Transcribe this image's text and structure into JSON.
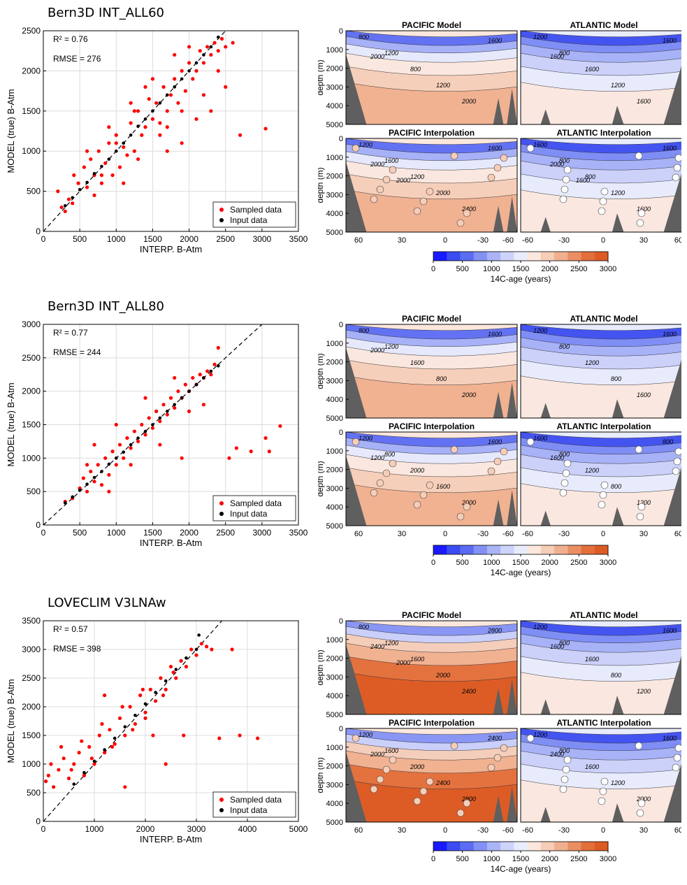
{
  "rows": [
    {
      "title": "Bern3D INT_ALL60",
      "r2": "R² = 0.76",
      "rmse": "RMSE = 276",
      "scatter": {
        "xlabel": "INTERP. B-Atm",
        "ylabel": "MODEL (true) B-Atm",
        "xlim": [
          0,
          3500
        ],
        "ylim": [
          0,
          2500
        ],
        "xticks": [
          0,
          500,
          1000,
          1500,
          2000,
          2500,
          3000,
          3500
        ],
        "yticks": [
          0,
          500,
          1000,
          1500,
          2000,
          2500
        ],
        "legend": [
          "Sampled data",
          "Input data"
        ]
      },
      "sections": {
        "model_pacific": "PACIFIC  Model",
        "model_atlantic": "ATLANTIC Model",
        "interp_pacific": "PACIFIC  Interpolation",
        "interp_atlantic": "ATLANTIC Interpolation",
        "depth_label": "depth (m)",
        "depth_ticks": [
          "0",
          "1000",
          "2000",
          "3000",
          "4000",
          "5000"
        ],
        "lat_ticks": [
          "60",
          "30",
          "0",
          "-30",
          "-60",
          "-60",
          "-30",
          "0",
          "30",
          "60"
        ],
        "contours_pac_model": [
          "800",
          "1200",
          "800",
          "1200",
          "2000",
          "1600",
          "2000"
        ],
        "contours_atl_model": [
          "1200",
          "800",
          "1600",
          "1200",
          "1600",
          "1600",
          "1600"
        ],
        "contours_pac_interp": [
          "1200",
          "1600",
          "1200",
          "2000",
          "2400",
          "1600",
          "2000",
          "2000"
        ],
        "contours_atl_interp": [
          "1600",
          "800",
          "800",
          "1200",
          "1600",
          "1600",
          "2000",
          "1600"
        ]
      },
      "colorbar": {
        "ticks": [
          "0",
          "500",
          "1000",
          "1500",
          "2000",
          "2500",
          "3000"
        ],
        "label": "14C-age (years)"
      }
    },
    {
      "title": "Bern3D INT_ALL80",
      "r2": "R² = 0.77",
      "rmse": "RMSE = 244",
      "scatter": {
        "xlabel": "INTERP. B-Atm",
        "ylabel": "MODEL (true) B-Atm",
        "xlim": [
          0,
          3500
        ],
        "ylim": [
          0,
          3000
        ],
        "xticks": [
          0,
          500,
          1000,
          1500,
          2000,
          2500,
          3000,
          3500
        ],
        "yticks": [
          0,
          500,
          1000,
          1500,
          2000,
          2500,
          3000
        ],
        "legend": [
          "Sampled data",
          "Input data"
        ]
      },
      "sections": {
        "model_pacific": "PACIFIC  Model",
        "model_atlantic": "ATLANTIC Model",
        "interp_pacific": "PACIFIC  Interpolation",
        "interp_atlantic": "ATLANTIC Interpolation",
        "depth_label": "depth (m)",
        "depth_ticks": [
          "0",
          "1000",
          "2000",
          "3000",
          "4000",
          "5000"
        ],
        "lat_ticks": [
          "60",
          "30",
          "0",
          "-30",
          "-60",
          "-60",
          "-30",
          "0",
          "30",
          "60"
        ],
        "contours_pac_model": [
          "800",
          "1200",
          "1600",
          "800",
          "2000",
          "1600",
          "2000"
        ],
        "contours_atl_model": [
          "1200",
          "800",
          "1200",
          "800",
          "1600",
          "1600"
        ],
        "contours_pac_interp": [
          "1200",
          "800",
          "2000",
          "1600",
          "2000",
          "1600",
          "1200"
        ],
        "contours_atl_interp": [
          "1600",
          "800",
          "1200",
          "800",
          "1200",
          "800",
          "1600"
        ]
      },
      "colorbar": {
        "ticks": [
          "0",
          "500",
          "1000",
          "1500",
          "2000",
          "2500",
          "3000"
        ],
        "label": "14C-age (years)"
      }
    },
    {
      "title": "LOVECLIM V3LNAw",
      "r2": "R² = 0.57",
      "rmse": "RMSE = 398",
      "scatter": {
        "xlabel": "INTERP. B-Atm",
        "ylabel": "MODEL (true) B-Atm",
        "xlim": [
          0,
          5000
        ],
        "ylim": [
          0,
          3500
        ],
        "xticks": [
          0,
          1000,
          2000,
          3000,
          4000,
          5000
        ],
        "yticks": [
          0,
          500,
          1000,
          1500,
          2000,
          2500,
          3000,
          3500
        ],
        "legend": [
          "Sampled data",
          "Input data"
        ]
      },
      "sections": {
        "model_pacific": "PACIFIC  Model",
        "model_atlantic": "ATLANTIC Model",
        "interp_pacific": "PACIFIC  Interpolation",
        "interp_atlantic": "ATLANTIC Interpolation",
        "depth_label": "depth (m)",
        "depth_ticks": [
          "0",
          "1000",
          "2000",
          "3000",
          "4000",
          "5000"
        ],
        "lat_ticks": [
          "60",
          "30",
          "0",
          "-30",
          "-60",
          "-60",
          "-30",
          "0",
          "30",
          "60"
        ],
        "contours_pac_model": [
          "800",
          "1200",
          "1600",
          "2000",
          "2400",
          "2800",
          "2400",
          "2000"
        ],
        "contours_atl_model": [
          "1200",
          "800",
          "1600",
          "800",
          "1200",
          "1600",
          "1600"
        ],
        "contours_pac_interp": [
          "1200",
          "1600",
          "2000",
          "2400",
          "2800",
          "2400",
          "2000"
        ],
        "contours_atl_interp": [
          "1200",
          "800",
          "1600",
          "1200",
          "2000",
          "1600",
          "2400"
        ]
      },
      "colorbar": {
        "ticks": [
          "0",
          "500",
          "1000",
          "1500",
          "2000",
          "2500",
          "3000"
        ],
        "label": "14C-age (years)"
      }
    }
  ],
  "chart_data": [
    {
      "type": "scatter",
      "title": "Bern3D INT_ALL60",
      "xlabel": "INTERP. B-Atm",
      "ylabel": "MODEL (true) B-Atm",
      "xlim": [
        0,
        3500
      ],
      "ylim": [
        0,
        2500
      ],
      "grid": true,
      "legend": "bottom-right",
      "annotations": [
        "R² = 0.76",
        "RMSE = 276"
      ],
      "series": [
        {
          "name": "Sampled data",
          "color": "#ff0000",
          "x": [
            250,
            350,
            420,
            480,
            560,
            600,
            650,
            700,
            760,
            800,
            850,
            900,
            950,
            1000,
            1050,
            1100,
            1150,
            1200,
            1250,
            1300,
            1350,
            1400,
            1450,
            1500,
            1550,
            1600,
            1650,
            1700,
            1750,
            1800,
            1850,
            1900,
            1950,
            2000,
            2050,
            2100,
            2150,
            2200,
            2250,
            2300,
            2350,
            2400,
            2450,
            2500,
            2600,
            2700,
            3050,
            600,
            700,
            1200,
            1300,
            1500,
            1700,
            1900,
            2100,
            2300,
            200,
            300,
            400,
            800,
            1000,
            1100,
            1400,
            1600,
            1800,
            2000,
            2200,
            2400,
            2500,
            1250,
            900,
            1700,
            1900
          ],
          "y": [
            300,
            400,
            700,
            600,
            800,
            550,
            900,
            700,
            1000,
            600,
            850,
            1100,
            700,
            1200,
            800,
            1050,
            950,
            1350,
            1000,
            1500,
            1200,
            1300,
            1650,
            1400,
            1600,
            1350,
            1800,
            1500,
            1700,
            1900,
            1600,
            2000,
            1750,
            2100,
            1900,
            2000,
            2250,
            2100,
            2300,
            2200,
            2350,
            2250,
            2400,
            2300,
            2350,
            1200,
            1280,
            1000,
            450,
            1600,
            900,
            1900,
            1000,
            1100,
            1400,
            1500,
            500,
            250,
            350,
            700,
            1100,
            600,
            1800,
            1200,
            2200,
            2300,
            1700,
            2000,
            1800,
            1500,
            1300,
            1300,
            1500
          ]
        },
        {
          "name": "Input data",
          "color": "#000000",
          "x": [
            300,
            400,
            500,
            600,
            700,
            800,
            900,
            1000,
            1100,
            1200,
            1300,
            1400,
            1500,
            1600,
            1700,
            1800,
            1900,
            2000,
            2100,
            2200,
            2300,
            2400
          ],
          "y": [
            320,
            420,
            520,
            610,
            720,
            810,
            900,
            1000,
            1100,
            1200,
            1310,
            1400,
            1500,
            1600,
            1700,
            1800,
            1900,
            2000,
            2100,
            2200,
            2300,
            2420
          ]
        }
      ]
    },
    {
      "type": "scatter",
      "title": "Bern3D INT_ALL80",
      "xlabel": "INTERP. B-Atm",
      "ylabel": "MODEL (true) B-Atm",
      "xlim": [
        0,
        3500
      ],
      "ylim": [
        0,
        3000
      ],
      "grid": true,
      "legend": "bottom-right",
      "annotations": [
        "R² = 0.77",
        "RMSE = 244"
      ],
      "series": [
        {
          "name": "Sampled data",
          "color": "#ff0000",
          "x": [
            300,
            400,
            500,
            550,
            600,
            650,
            700,
            750,
            800,
            850,
            900,
            950,
            1000,
            1050,
            1100,
            1150,
            1200,
            1250,
            1300,
            1350,
            1400,
            1450,
            1500,
            1550,
            1600,
            1650,
            1700,
            1750,
            1800,
            1850,
            1900,
            1950,
            2000,
            2050,
            2100,
            2150,
            2200,
            2250,
            2300,
            2350,
            2400,
            2550,
            2650,
            2850,
            3050,
            3100,
            3250,
            700,
            1000,
            1200,
            1400,
            1600,
            1800,
            2000,
            2200,
            1900,
            600,
            900
          ],
          "y": [
            350,
            400,
            550,
            700,
            500,
            800,
            650,
            900,
            600,
            1000,
            750,
            1100,
            900,
            1200,
            1000,
            1300,
            1150,
            1400,
            1250,
            1500,
            1350,
            1600,
            1450,
            1700,
            1550,
            1800,
            1650,
            1900,
            1750,
            2000,
            1900,
            2100,
            2000,
            2200,
            2100,
            2250,
            2200,
            2300,
            2250,
            2400,
            2650,
            1000,
            1150,
            1100,
            1300,
            1100,
            1480,
            1200,
            1500,
            900,
            1900,
            1200,
            2200,
            1700,
            1800,
            1000,
            900,
            500
          ]
        },
        {
          "name": "Input data",
          "color": "#000000",
          "x": [
            300,
            400,
            500,
            600,
            700,
            800,
            900,
            1000,
            1100,
            1200,
            1300,
            1400,
            1500,
            1600,
            1700,
            1800,
            1900,
            2000,
            2100,
            2200,
            2300,
            2400
          ],
          "y": [
            330,
            420,
            520,
            610,
            710,
            800,
            910,
            1000,
            1090,
            1200,
            1300,
            1400,
            1500,
            1600,
            1700,
            1800,
            1900,
            2000,
            2100,
            2200,
            2300,
            2380
          ]
        }
      ]
    },
    {
      "type": "scatter",
      "title": "LOVECLIM V3LNAw",
      "xlabel": "INTERP. B-Atm",
      "ylabel": "MODEL (true) B-Atm",
      "xlim": [
        0,
        5000
      ],
      "ylim": [
        0,
        3500
      ],
      "grid": true,
      "legend": "bottom-right",
      "annotations": [
        "R² = 0.57",
        "RMSE = 398"
      ],
      "series": [
        {
          "name": "Sampled data",
          "color": "#ff0000",
          "x": [
            50,
            100,
            200,
            300,
            400,
            500,
            600,
            700,
            800,
            900,
            1000,
            1100,
            1200,
            1300,
            1400,
            1500,
            1600,
            1700,
            1800,
            1900,
            2000,
            2100,
            2200,
            2300,
            2400,
            2500,
            2600,
            2700,
            2800,
            2900,
            3000,
            3100,
            3200,
            3300,
            3450,
            3700,
            3850,
            4200,
            150,
            350,
            550,
            750,
            950,
            1150,
            1350,
            1550,
            1750,
            1950,
            2150,
            2350,
            2550,
            2750,
            1200,
            1600,
            2000,
            2400
          ],
          "y": [
            700,
            800,
            600,
            900,
            1100,
            750,
            1000,
            1200,
            800,
            1300,
            1000,
            1500,
            1200,
            1600,
            1350,
            1800,
            1500,
            2000,
            1700,
            2200,
            1900,
            2300,
            2100,
            2500,
            2300,
            2700,
            2500,
            2800,
            2700,
            3000,
            2900,
            3100,
            3050,
            3000,
            1450,
            3000,
            1500,
            1450,
            1000,
            1300,
            900,
            1400,
            1100,
            1700,
            1300,
            2000,
            1600,
            2300,
            1500,
            2200,
            2600,
            1500,
            2200,
            600,
            1800,
            1000
          ]
        },
        {
          "name": "Input data",
          "color": "#000000",
          "x": [
            600,
            800,
            1000,
            1200,
            1400,
            1600,
            1800,
            2000,
            2200,
            2400,
            2600,
            2800,
            3000,
            3050
          ],
          "y": [
            650,
            850,
            1050,
            1250,
            1450,
            1650,
            1850,
            2050,
            2250,
            2450,
            2650,
            2850,
            3000,
            3250
          ]
        }
      ]
    }
  ]
}
